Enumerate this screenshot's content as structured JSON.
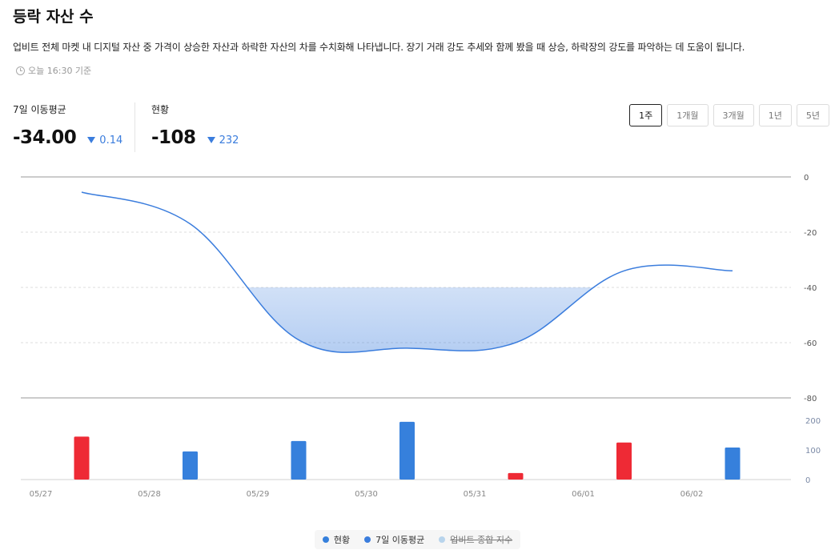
{
  "header": {
    "title": "등락 자산 수",
    "description": "업비트 전체 마켓 내 디지털 자산 중 가격이 상승한 자산과 하락한 자산의 차를 수치화해 나타냅니다. 장기 거래 강도 추세와 함께 봤을 때 상승, 하락장의 강도를 파악하는 데 도움이 됩니다.",
    "as_of": "오늘 16:30 기준",
    "clock_icon": "clock-icon"
  },
  "stats": {
    "moving_avg": {
      "label": "7일 이동평균",
      "value": "-34.00",
      "change": "0.14",
      "direction": "down"
    },
    "current": {
      "label": "현황",
      "value": "-108",
      "change": "232",
      "direction": "down"
    }
  },
  "periods": [
    {
      "label": "1주",
      "active": true
    },
    {
      "label": "1개월",
      "active": false
    },
    {
      "label": "3개월",
      "active": false
    },
    {
      "label": "1년",
      "active": false
    },
    {
      "label": "5년",
      "active": false
    }
  ],
  "colors": {
    "line": "#3b7ddd",
    "up": "#ee2a35",
    "down": "#3680dc",
    "index": "#b8d4ec"
  },
  "chart_data": {
    "type": "line",
    "x_labels": [
      "05/27",
      "05/28",
      "05/29",
      "05/30",
      "05/31",
      "06/01",
      "06/02"
    ],
    "line_axis": {
      "ticks": [
        "0",
        "-20",
        "-40",
        "-60",
        "-80"
      ],
      "ylim": [
        -80,
        0
      ]
    },
    "bar_axis": {
      "ticks": [
        "200",
        "100",
        "0"
      ],
      "ylim": [
        0,
        200
      ]
    },
    "moving_average": {
      "name": "7일 이동평균",
      "x": [
        "05/27",
        "05/28",
        "05/29",
        "05/30",
        "05/31",
        "06/01",
        "06/02"
      ],
      "values": [
        -5.5,
        -17,
        -59,
        -62,
        -60,
        -34,
        -34
      ]
    },
    "bars": {
      "name": "현황",
      "x": [
        "05/27",
        "05/28",
        "05/29",
        "05/30",
        "05/31",
        "06/01",
        "06/02"
      ],
      "values": [
        145,
        95,
        130,
        195,
        22,
        125,
        108
      ],
      "signs": [
        "up",
        "down",
        "down",
        "down",
        "up",
        "up",
        "down"
      ]
    },
    "legend": [
      {
        "label": "현황",
        "color": "#3680dc"
      },
      {
        "label": "7일 이동평균",
        "color": "#3b7ddd"
      },
      {
        "label": "업비트 종합 지수",
        "color": "#b8d4ec"
      }
    ]
  }
}
